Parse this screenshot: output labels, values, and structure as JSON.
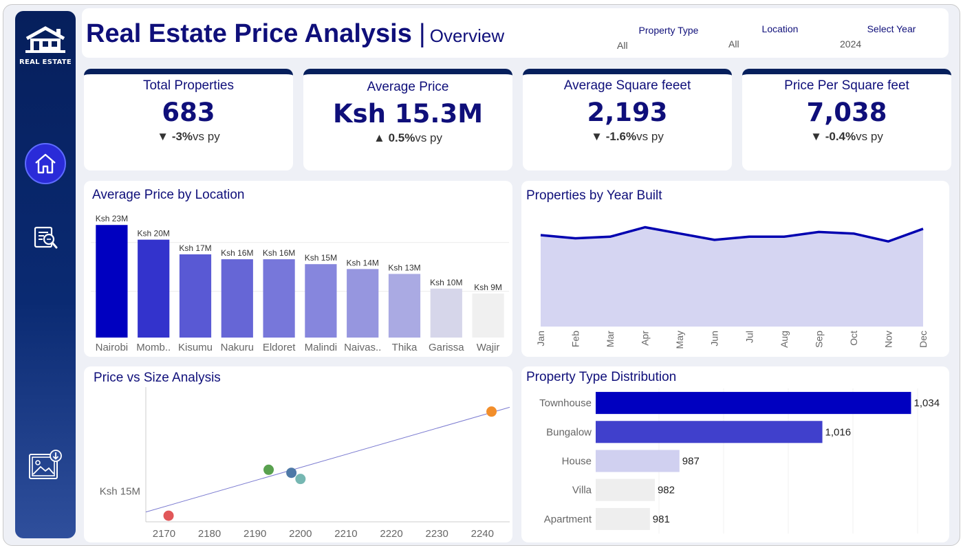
{
  "header": {
    "title": "Real Estate Price Analysis",
    "separator": "|",
    "subtitle": "Overview"
  },
  "filters": [
    {
      "label": "Property Type",
      "value": "All"
    },
    {
      "label": "Location",
      "value": "All"
    },
    {
      "label": "Select Year",
      "value": "2024"
    }
  ],
  "sidebar": {
    "logo_text": "REAL ESTATE",
    "items": [
      {
        "icon": "home-icon",
        "active": true
      },
      {
        "icon": "report-search-icon",
        "active": false
      },
      {
        "icon": "image-download-icon",
        "active": false
      }
    ]
  },
  "kpis": [
    {
      "title": "Total Properties",
      "value": "683",
      "arrow": "▼",
      "delta": "-3%",
      "suffix": "vs py"
    },
    {
      "title": "Average Price",
      "value": "Ksh 15.3M",
      "arrow": "▲",
      "delta": "0.5%",
      "suffix": "vs py"
    },
    {
      "title": "Average Square feeet",
      "value": "2,193",
      "arrow": "▼",
      "delta": "-1.6%",
      "suffix": "vs py"
    },
    {
      "title": "Price Per Square feet",
      "value": "7,038",
      "arrow": "▼",
      "delta": "-0.4%",
      "suffix": "vs py"
    }
  ],
  "colors": {
    "navy": "#061f5c",
    "title": "#0f0f7a",
    "accent": "#0000c0"
  },
  "chart_data": [
    {
      "type": "bar",
      "title": "Average Price by Location",
      "categories": [
        "Nairobi",
        "Momb..",
        "Kisumu",
        "Nakuru",
        "Eldoret",
        "Malindi",
        "Naivas..",
        "Thika",
        "Garissa",
        "Wajir"
      ],
      "values": [
        23,
        20,
        17,
        16,
        16,
        15,
        14,
        13,
        10,
        9
      ],
      "labels": [
        "Ksh 23M",
        "Ksh 20M",
        "Ksh 17M",
        "Ksh 16M",
        "Ksh 16M",
        "Ksh 15M",
        "Ksh 14M",
        "Ksh 13M",
        "Ksh 10M",
        "Ksh 9M"
      ],
      "colors": [
        "#0000c0",
        "#3333cc",
        "#5959d4",
        "#6666d6",
        "#7777da",
        "#8686dd",
        "#9696df",
        "#aaaae3",
        "#d6d6ea",
        "#f0f0f0"
      ],
      "ylim": [
        0,
        25
      ],
      "grid": true
    },
    {
      "type": "area",
      "title": "Properties by Year Built",
      "categories": [
        "Jan",
        "Feb",
        "Mar",
        "Apr",
        "May",
        "Jun",
        "Jul",
        "Aug",
        "Sep",
        "Oct",
        "Nov",
        "Dec"
      ],
      "values": [
        58,
        56,
        57,
        63,
        59,
        55,
        57,
        57,
        60,
        59,
        54,
        62
      ],
      "ylim": [
        0,
        75
      ],
      "line_color": "#0000b0",
      "fill_color": "#d5d5f2"
    },
    {
      "type": "scatter",
      "title": "Price vs Size Analysis",
      "x_ticks": [
        2170,
        2180,
        2190,
        2200,
        2210,
        2220,
        2230,
        2240
      ],
      "y_ticks": [
        15
      ],
      "y_tick_labels": [
        "Ksh 15M"
      ],
      "xlim": [
        2166,
        2246
      ],
      "ylim": [
        14.5,
        16.7
      ],
      "points": [
        {
          "x": 2171,
          "y": 14.6,
          "color": "#e15759"
        },
        {
          "x": 2193,
          "y": 15.35,
          "color": "#59a14f"
        },
        {
          "x": 2198,
          "y": 15.3,
          "color": "#4e79a7"
        },
        {
          "x": 2200,
          "y": 15.2,
          "color": "#76b7b2"
        },
        {
          "x": 2242,
          "y": 16.3,
          "color": "#f28e2b"
        }
      ],
      "trend": {
        "x0": 2166,
        "y0": 14.66,
        "x1": 2246,
        "y1": 16.37,
        "color": "#7a7ad0"
      }
    },
    {
      "type": "bar",
      "orientation": "horizontal",
      "title": "Property Type Distribution",
      "categories": [
        "Townhouse",
        "Bungalow",
        "House",
        "Villa",
        "Apartment"
      ],
      "values": [
        1034,
        1016,
        987,
        982,
        981
      ],
      "labels": [
        "1,034",
        "1,016",
        "987",
        "982",
        "981"
      ],
      "colors": [
        "#0000c0",
        "#4040cc",
        "#d0d0f0",
        "#eeeeee",
        "#eeeeee"
      ],
      "xlim": [
        970,
        1037
      ]
    }
  ]
}
